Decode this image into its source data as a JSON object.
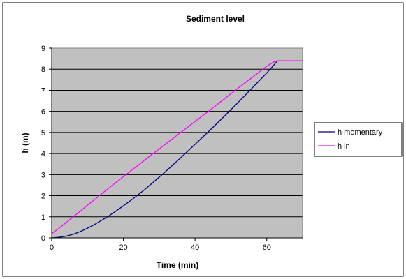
{
  "chart_data": {
    "type": "line",
    "title": "Sediment level",
    "xlabel": "Time (min)",
    "ylabel": "h (m)",
    "xlim": [
      0,
      70
    ],
    "ylim": [
      0,
      9
    ],
    "xticks": [
      0,
      20,
      40,
      60
    ],
    "yticks": [
      0,
      1,
      2,
      3,
      4,
      5,
      6,
      7,
      8,
      9
    ],
    "grid": "horizontal",
    "legend_position": "right",
    "plot_background": "#c0c0c0",
    "series": [
      {
        "name": "h momentary",
        "color": "#000080",
        "x": [
          0,
          2,
          4,
          6,
          8,
          10,
          12,
          14,
          16,
          18,
          20,
          22,
          24,
          26,
          28,
          30,
          32,
          34,
          36,
          38,
          40,
          42,
          44,
          46,
          48,
          50,
          52,
          54,
          56,
          58,
          60,
          62,
          63,
          70
        ],
        "y": [
          0.0,
          0.03,
          0.08,
          0.17,
          0.3,
          0.46,
          0.64,
          0.84,
          1.05,
          1.28,
          1.52,
          1.77,
          2.03,
          2.3,
          2.59,
          2.88,
          3.18,
          3.49,
          3.8,
          4.12,
          4.44,
          4.76,
          5.08,
          5.41,
          5.74,
          6.08,
          6.42,
          6.77,
          7.12,
          7.47,
          7.82,
          8.2,
          8.4,
          8.4
        ]
      },
      {
        "name": "h in",
        "color": "#ff00ff",
        "x": [
          0,
          2,
          4,
          6,
          8,
          10,
          12,
          14,
          16,
          18,
          20,
          22,
          24,
          26,
          28,
          30,
          32,
          34,
          36,
          38,
          40,
          42,
          44,
          46,
          48,
          50,
          52,
          54,
          56,
          58,
          60,
          62,
          63,
          70
        ],
        "y": [
          0.2,
          0.45,
          0.72,
          1.0,
          1.27,
          1.55,
          1.82,
          2.1,
          2.37,
          2.64,
          2.9,
          3.17,
          3.43,
          3.7,
          3.96,
          4.22,
          4.48,
          4.74,
          5.0,
          5.26,
          5.52,
          5.78,
          6.04,
          6.3,
          6.57,
          6.84,
          7.1,
          7.36,
          7.62,
          7.88,
          8.14,
          8.35,
          8.4,
          8.4
        ]
      }
    ]
  }
}
